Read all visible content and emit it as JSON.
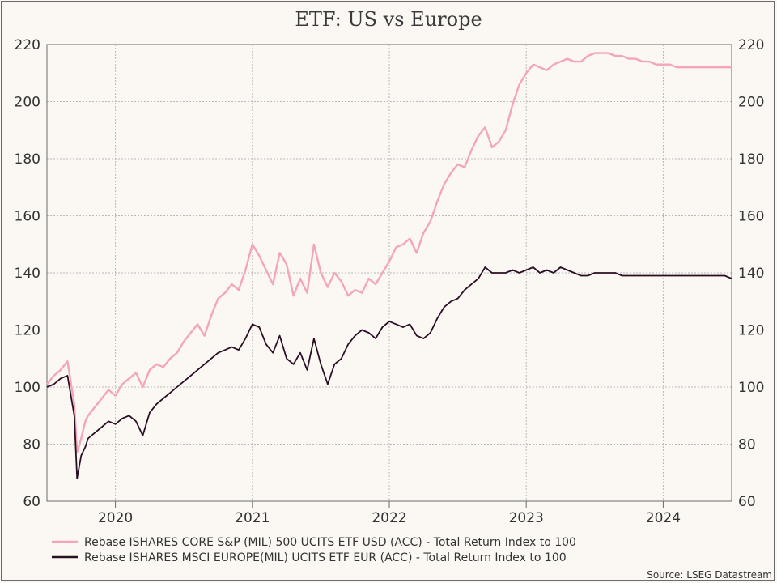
{
  "chart_data": {
    "type": "line",
    "title": "ETF: US vs Europe",
    "xlabel": "",
    "ylabel": "",
    "ylim": [
      60,
      220
    ],
    "y_ticks": [
      60,
      80,
      100,
      120,
      140,
      160,
      180,
      200,
      220
    ],
    "x_tick_labels": [
      "2020",
      "2021",
      "2022",
      "2023",
      "2024"
    ],
    "xlim": [
      2019.5,
      2024.5
    ],
    "grid": true,
    "legend_position": "bottom-left",
    "series": [
      {
        "name": "Rebase ISHARES CORE S&P (MIL) 500 UCITS ETF USD (ACC) - Total Return Index to 100",
        "color": "#f4a6b8",
        "x": [
          2019.5,
          2019.55,
          2019.6,
          2019.65,
          2019.7,
          2019.72,
          2019.75,
          2019.78,
          2019.8,
          2019.85,
          2019.9,
          2019.95,
          2020.0,
          2020.05,
          2020.1,
          2020.15,
          2020.2,
          2020.25,
          2020.3,
          2020.35,
          2020.4,
          2020.45,
          2020.5,
          2020.55,
          2020.6,
          2020.65,
          2020.7,
          2020.75,
          2020.8,
          2020.85,
          2020.9,
          2020.95,
          2021.0,
          2021.05,
          2021.1,
          2021.15,
          2021.2,
          2021.25,
          2021.3,
          2021.35,
          2021.4,
          2021.45,
          2021.5,
          2021.55,
          2021.6,
          2021.65,
          2021.7,
          2021.75,
          2021.8,
          2021.85,
          2021.9,
          2021.95,
          2022.0,
          2022.05,
          2022.1,
          2022.15,
          2022.2,
          2022.25,
          2022.3,
          2022.35,
          2022.4,
          2022.45,
          2022.5,
          2022.55,
          2022.6,
          2022.65,
          2022.7,
          2022.75,
          2022.8,
          2022.85,
          2022.9,
          2022.95,
          2023.0,
          2023.05,
          2023.1,
          2023.15,
          2023.2,
          2023.25,
          2023.3,
          2023.35,
          2023.4,
          2023.45,
          2023.5,
          2023.55,
          2023.6,
          2023.65,
          2023.7,
          2023.75,
          2023.8,
          2023.85,
          2023.9,
          2023.95,
          2024.0,
          2024.05,
          2024.1,
          2024.15,
          2024.2,
          2024.25,
          2024.3,
          2024.35,
          2024.4,
          2024.45,
          2024.5
        ],
        "values": [
          101,
          104,
          106,
          109,
          94,
          77,
          82,
          88,
          90,
          93,
          96,
          99,
          97,
          101,
          103,
          105,
          100,
          106,
          108,
          107,
          110,
          112,
          116,
          119,
          122,
          118,
          125,
          131,
          133,
          136,
          134,
          141,
          150,
          146,
          141,
          136,
          147,
          143,
          132,
          138,
          133,
          150,
          140,
          135,
          140,
          137,
          132,
          134,
          133,
          138,
          136,
          140,
          144,
          149,
          150,
          152,
          147,
          154,
          158,
          165,
          171,
          175,
          178,
          177,
          183,
          188,
          191,
          184,
          186,
          190,
          199,
          206,
          210,
          213,
          212,
          211,
          213,
          214,
          215,
          214,
          214,
          216,
          217,
          217,
          217,
          216,
          216,
          215,
          215,
          214,
          214,
          213,
          213,
          213,
          212,
          212,
          212,
          212,
          212,
          212,
          212,
          212,
          212
        ]
      },
      {
        "name": "Rebase ISHARES MSCI EUROPE(MIL) UCITS ETF EUR (ACC) - Total Return Index to 100",
        "color": "#2a0f24",
        "x": [
          2019.5,
          2019.55,
          2019.6,
          2019.65,
          2019.7,
          2019.72,
          2019.75,
          2019.78,
          2019.8,
          2019.85,
          2019.9,
          2019.95,
          2020.0,
          2020.05,
          2020.1,
          2020.15,
          2020.2,
          2020.25,
          2020.3,
          2020.35,
          2020.4,
          2020.45,
          2020.5,
          2020.55,
          2020.6,
          2020.65,
          2020.7,
          2020.75,
          2020.8,
          2020.85,
          2020.9,
          2020.95,
          2021.0,
          2021.05,
          2021.1,
          2021.15,
          2021.2,
          2021.25,
          2021.3,
          2021.35,
          2021.4,
          2021.45,
          2021.5,
          2021.55,
          2021.6,
          2021.65,
          2021.7,
          2021.75,
          2021.8,
          2021.85,
          2021.9,
          2021.95,
          2022.0,
          2022.05,
          2022.1,
          2022.15,
          2022.2,
          2022.25,
          2022.3,
          2022.35,
          2022.4,
          2022.45,
          2022.5,
          2022.55,
          2022.6,
          2022.65,
          2022.7,
          2022.75,
          2022.8,
          2022.85,
          2022.9,
          2022.95,
          2023.0,
          2023.05,
          2023.1,
          2023.15,
          2023.2,
          2023.25,
          2023.3,
          2023.35,
          2023.4,
          2023.45,
          2023.5,
          2023.55,
          2023.6,
          2023.65,
          2023.7,
          2023.75,
          2023.8,
          2023.85,
          2023.9,
          2023.95,
          2024.0,
          2024.05,
          2024.1,
          2024.15,
          2024.2,
          2024.25,
          2024.3,
          2024.35,
          2024.4,
          2024.45,
          2024.5
        ],
        "values": [
          100,
          101,
          103,
          104,
          90,
          68,
          76,
          79,
          82,
          84,
          86,
          88,
          87,
          89,
          90,
          88,
          83,
          91,
          94,
          96,
          98,
          100,
          102,
          104,
          106,
          108,
          110,
          112,
          113,
          114,
          113,
          117,
          122,
          121,
          115,
          112,
          118,
          110,
          108,
          112,
          106,
          117,
          108,
          101,
          108,
          110,
          115,
          118,
          120,
          119,
          117,
          121,
          123,
          122,
          121,
          122,
          118,
          117,
          119,
          124,
          128,
          130,
          131,
          134,
          136,
          138,
          142,
          140,
          140,
          140,
          141,
          140,
          141,
          142,
          140,
          141,
          140,
          142,
          141,
          140,
          139,
          139,
          140,
          140,
          140,
          140,
          139,
          139,
          139,
          139,
          139,
          139,
          139,
          139,
          139,
          139,
          139,
          139,
          139,
          139,
          139,
          139,
          138
        ]
      }
    ],
    "source": "Source: LSEG Datastream"
  }
}
